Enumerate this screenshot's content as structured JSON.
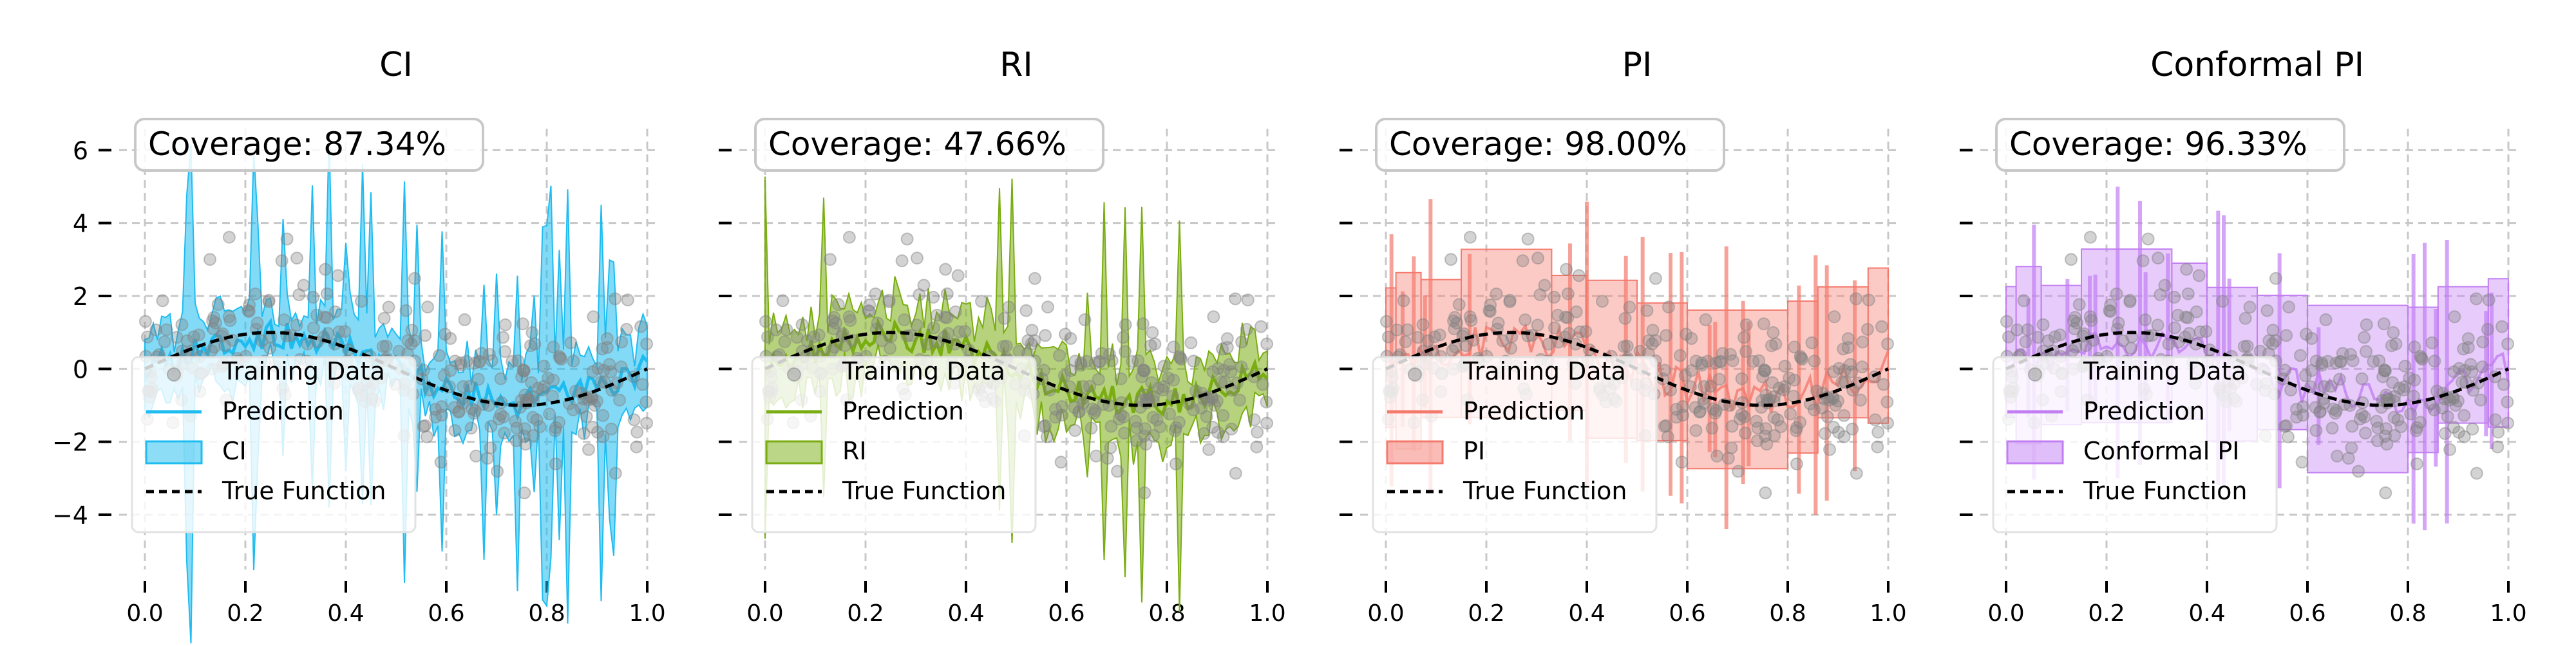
{
  "figure": {
    "panels": [
      {
        "title": "CI",
        "coverage_text": "Coverage: 87.34%",
        "color": "#1ebcf0",
        "interval_kind": "spiky",
        "legend": [
          "Training Data",
          "Prediction",
          "CI",
          "True Function"
        ]
      },
      {
        "title": "RI",
        "coverage_text": "Coverage: 47.66%",
        "color": "#7aad12",
        "interval_kind": "spiky",
        "legend": [
          "Training Data",
          "Prediction",
          "RI",
          "True Function"
        ]
      },
      {
        "title": "PI",
        "coverage_text": "Coverage: 98.00%",
        "color": "#f47a6e",
        "interval_kind": "wide",
        "legend": [
          "Training Data",
          "Prediction",
          "PI",
          "True Function"
        ]
      },
      {
        "title": "Conformal PI",
        "coverage_text": "Coverage: 96.33%",
        "color": "#c27ef3",
        "interval_kind": "wide",
        "legend": [
          "Training Data",
          "Prediction",
          "Conformal PI",
          "True Function"
        ]
      }
    ]
  },
  "chart_data": [
    {
      "type": "scatter",
      "title": "CI",
      "annotation": "Coverage: 87.34%",
      "xlim": [
        0.0,
        1.0
      ],
      "ylim": [
        -5.5,
        6.5
      ],
      "x_ticks": [
        "0.0",
        "0.2",
        "0.4",
        "0.6",
        "0.8",
        "1.0"
      ],
      "y_ticks": [
        "6",
        "4",
        "2",
        "0",
        "−2",
        "−4"
      ],
      "grid": true,
      "legend_position": "lower-left",
      "series": [
        {
          "name": "Training Data",
          "kind": "scatter",
          "color": "#808080"
        },
        {
          "name": "Prediction",
          "kind": "line",
          "color": "#1ebcf0"
        },
        {
          "name": "CI",
          "kind": "band",
          "color": "#1ebcf0"
        },
        {
          "name": "True Function",
          "kind": "dashed-line",
          "color": "#000000",
          "function": "sin(2*pi*x)"
        }
      ]
    },
    {
      "type": "scatter",
      "title": "RI",
      "annotation": "Coverage: 47.66%",
      "xlim": [
        0.0,
        1.0
      ],
      "ylim": [
        -5.5,
        6.5
      ],
      "x_ticks": [
        "0.0",
        "0.2",
        "0.4",
        "0.6",
        "0.8",
        "1.0"
      ],
      "y_ticks": [],
      "grid": true,
      "legend_position": "lower-left",
      "series": [
        {
          "name": "Training Data",
          "kind": "scatter",
          "color": "#808080"
        },
        {
          "name": "Prediction",
          "kind": "line",
          "color": "#7aad12"
        },
        {
          "name": "RI",
          "kind": "band",
          "color": "#7aad12"
        },
        {
          "name": "True Function",
          "kind": "dashed-line",
          "color": "#000000",
          "function": "sin(2*pi*x)"
        }
      ]
    },
    {
      "type": "scatter",
      "title": "PI",
      "annotation": "Coverage: 98.00%",
      "xlim": [
        0.0,
        1.0
      ],
      "ylim": [
        -5.5,
        6.5
      ],
      "x_ticks": [
        "0.0",
        "0.2",
        "0.4",
        "0.6",
        "0.8",
        "1.0"
      ],
      "y_ticks": [],
      "grid": true,
      "legend_position": "lower-left",
      "series": [
        {
          "name": "Training Data",
          "kind": "scatter",
          "color": "#808080"
        },
        {
          "name": "Prediction",
          "kind": "line",
          "color": "#f47a6e"
        },
        {
          "name": "PI",
          "kind": "band",
          "color": "#f47a6e"
        },
        {
          "name": "True Function",
          "kind": "dashed-line",
          "color": "#000000",
          "function": "sin(2*pi*x)"
        }
      ]
    },
    {
      "type": "scatter",
      "title": "Conformal PI",
      "annotation": "Coverage: 96.33%",
      "xlim": [
        0.0,
        1.0
      ],
      "ylim": [
        -5.5,
        6.5
      ],
      "x_ticks": [
        "0.0",
        "0.2",
        "0.4",
        "0.6",
        "0.8",
        "1.0"
      ],
      "y_ticks": [],
      "grid": true,
      "legend_position": "lower-left",
      "series": [
        {
          "name": "Training Data",
          "kind": "scatter",
          "color": "#808080"
        },
        {
          "name": "Prediction",
          "kind": "line",
          "color": "#c27ef3"
        },
        {
          "name": "Conformal PI",
          "kind": "band",
          "color": "#c27ef3"
        },
        {
          "name": "True Function",
          "kind": "dashed-line",
          "color": "#000000",
          "function": "sin(2*pi*x)"
        }
      ]
    }
  ]
}
